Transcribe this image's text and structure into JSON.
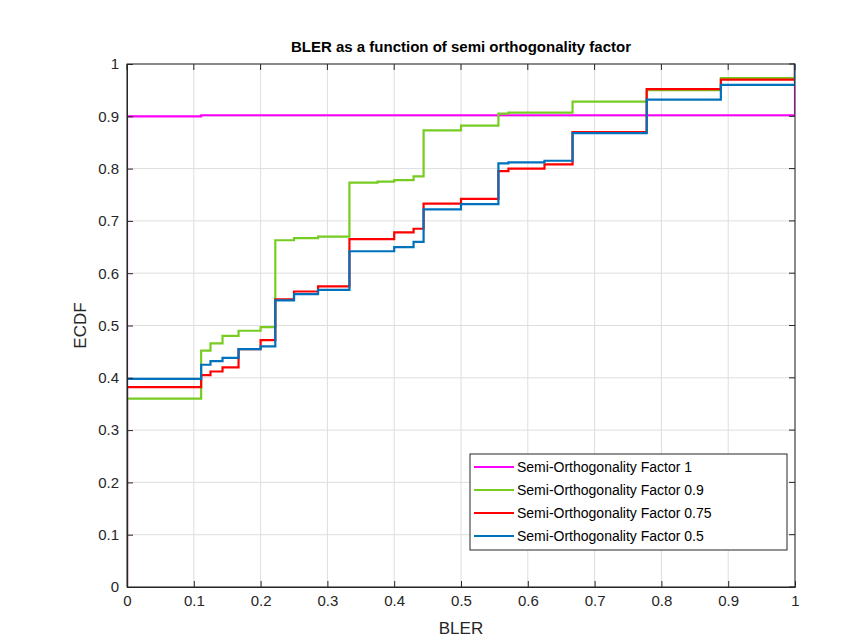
{
  "chart_data": {
    "type": "step",
    "title": "BLER as a function of semi orthogonality factor",
    "x_label": "BLER",
    "y_label": "ECDF",
    "xlim": [
      0,
      1
    ],
    "ylim": [
      0,
      1
    ],
    "xticks": [
      0,
      0.1,
      0.2,
      0.3,
      0.4,
      0.5,
      0.6,
      0.7,
      0.8,
      0.9,
      1
    ],
    "yticks": [
      0,
      0.1,
      0.2,
      0.3,
      0.4,
      0.5,
      0.6,
      0.7,
      0.8,
      0.9,
      1
    ],
    "grid": true,
    "legend": "southeast",
    "series": [
      {
        "name": "Semi-Orthogonality Factor 1",
        "color": "#ff00ff",
        "x": [
          0,
          0,
          0.111,
          1
        ],
        "values": [
          0,
          0.9,
          0.902,
          1
        ]
      },
      {
        "name": "Semi-Orthogonality Factor 0.9",
        "color": "#77cc22",
        "x": [
          0,
          0,
          0.111,
          0.125,
          0.143,
          0.167,
          0.2,
          0.222,
          0.25,
          0.286,
          0.333,
          0.375,
          0.4,
          0.429,
          0.444,
          0.5,
          0.556,
          0.571,
          0.667,
          0.778,
          0.889,
          1
        ],
        "values": [
          0,
          0.36,
          0.452,
          0.466,
          0.48,
          0.49,
          0.497,
          0.663,
          0.667,
          0.67,
          0.773,
          0.775,
          0.778,
          0.785,
          0.873,
          0.882,
          0.905,
          0.907,
          0.928,
          0.95,
          0.973,
          1
        ]
      },
      {
        "name": "Semi-Orthogonality Factor 0.75",
        "color": "#ff0000",
        "x": [
          0,
          0,
          0.111,
          0.125,
          0.143,
          0.167,
          0.2,
          0.222,
          0.25,
          0.286,
          0.333,
          0.4,
          0.429,
          0.444,
          0.5,
          0.556,
          0.571,
          0.625,
          0.667,
          0.778,
          0.889,
          1
        ],
        "values": [
          0,
          0.382,
          0.405,
          0.412,
          0.42,
          0.455,
          0.472,
          0.55,
          0.565,
          0.575,
          0.665,
          0.678,
          0.685,
          0.733,
          0.742,
          0.795,
          0.8,
          0.808,
          0.87,
          0.952,
          0.97,
          1
        ]
      },
      {
        "name": "Semi-Orthogonality Factor 0.5",
        "color": "#0072bd",
        "x": [
          0,
          0,
          0.111,
          0.125,
          0.143,
          0.167,
          0.2,
          0.222,
          0.25,
          0.286,
          0.333,
          0.4,
          0.429,
          0.444,
          0.5,
          0.556,
          0.571,
          0.625,
          0.667,
          0.778,
          0.889,
          1
        ],
        "values": [
          0,
          0.398,
          0.425,
          0.432,
          0.438,
          0.455,
          0.46,
          0.548,
          0.56,
          0.568,
          0.642,
          0.65,
          0.66,
          0.722,
          0.732,
          0.81,
          0.812,
          0.815,
          0.868,
          0.932,
          0.96,
          1
        ]
      }
    ]
  }
}
